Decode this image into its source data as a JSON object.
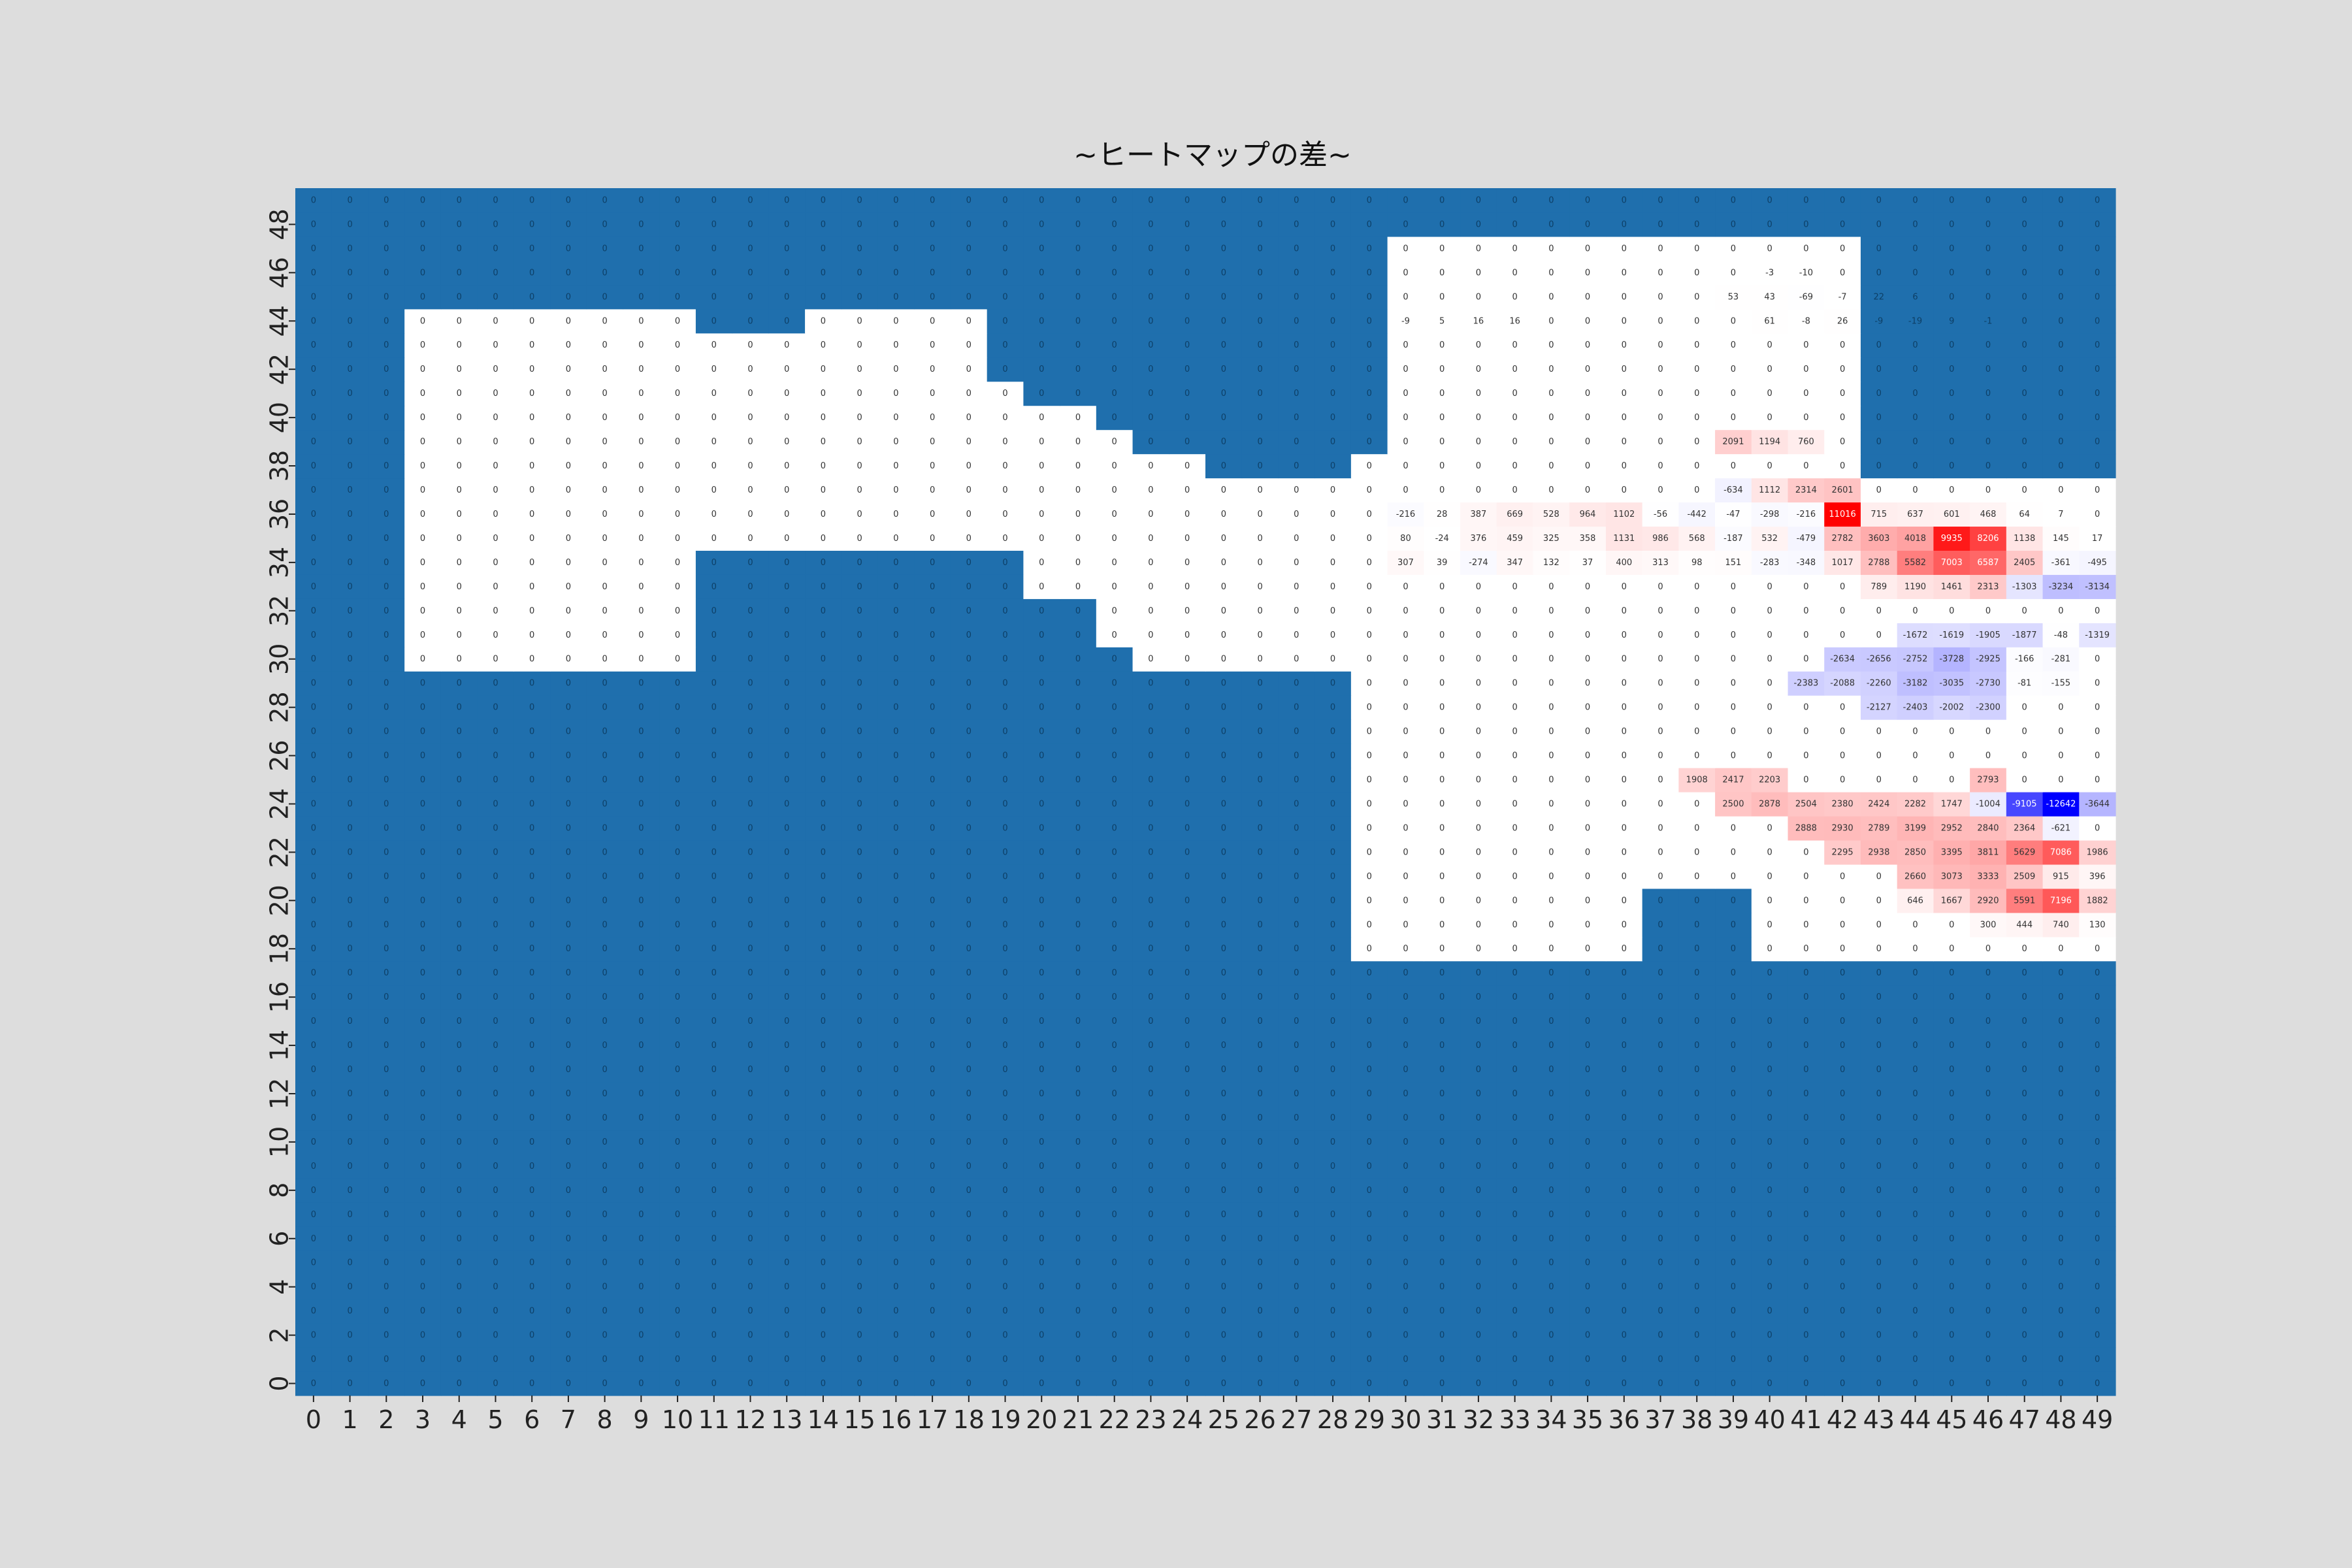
{
  "chart_data": {
    "type": "heatmap",
    "title": "~ヒートマップの差~",
    "xlabel": "",
    "ylabel": "",
    "x_tick_labels": [
      "0",
      "1",
      "2",
      "3",
      "4",
      "5",
      "6",
      "7",
      "8",
      "9",
      "10",
      "11",
      "12",
      "13",
      "14",
      "15",
      "16",
      "17",
      "18",
      "19",
      "20",
      "21",
      "22",
      "23",
      "24",
      "25",
      "26",
      "27",
      "28",
      "29",
      "30",
      "31",
      "32",
      "33",
      "34",
      "35",
      "36",
      "37",
      "38",
      "39",
      "40",
      "41",
      "42",
      "43",
      "44",
      "45",
      "46",
      "47",
      "48",
      "49"
    ],
    "y_tick_labels": [
      "0",
      "2",
      "4",
      "6",
      "8",
      "10",
      "12",
      "14",
      "16",
      "18",
      "20",
      "22",
      "24",
      "26",
      "28",
      "30",
      "32",
      "34",
      "36",
      "38",
      "40",
      "42",
      "44",
      "46",
      "48"
    ],
    "y_order": "bottom-to-top",
    "colorscale": {
      "negative": "#0000ff",
      "zero": "#ffffff",
      "positive": "#ff0000",
      "masked": "#1f6fad",
      "vmin": -12642,
      "vmax": 11016
    },
    "note_rows": "rows listed from y=49 (top) down to y=0 (bottom)",
    "annotated_values": [
      {
        "y": 36,
        "x": 42,
        "value": 11016
      },
      {
        "y": 24,
        "x": 47,
        "value": -9105
      },
      {
        "y": 24,
        "x": 48,
        "value": -12642
      },
      {
        "y": 35,
        "x": 45,
        "value": 9935
      },
      {
        "y": 35,
        "x": 46,
        "value": 8206
      },
      {
        "y": 34,
        "x": 45,
        "value": 7003
      },
      {
        "y": 34,
        "x": 46,
        "value": 6587
      },
      {
        "y": 22,
        "x": 48,
        "value": 7086
      },
      {
        "y": 20,
        "x": 48,
        "value": 7196
      },
      {
        "y": 20,
        "x": 47,
        "value": 5591
      },
      {
        "y": 22,
        "x": 47,
        "value": 5629
      },
      {
        "y": 34,
        "x": 44,
        "value": 5582
      }
    ],
    "rows": [
      {
        "y": 49,
        "values": [
          0,
          0,
          0,
          0,
          0,
          0,
          0,
          0,
          0,
          0,
          0,
          0,
          0,
          0,
          0,
          0,
          0,
          0,
          0,
          0,
          0,
          0,
          0,
          0,
          0,
          0,
          0,
          0,
          0,
          0,
          0,
          0,
          0,
          0,
          0,
          0,
          0,
          0,
          0,
          0,
          0,
          0,
          0,
          0,
          0,
          0,
          0,
          0,
          0,
          0
        ],
        "mask": "all"
      },
      {
        "y": 48,
        "values": [
          0,
          0,
          0,
          0,
          0,
          0,
          0,
          0,
          0,
          0,
          0,
          0,
          0,
          0,
          0,
          0,
          0,
          0,
          0,
          0,
          0,
          0,
          0,
          0,
          0,
          0,
          0,
          0,
          0,
          0,
          0,
          0,
          0,
          0,
          0,
          0,
          0,
          0,
          0,
          0,
          0,
          0,
          0,
          0,
          0,
          0,
          0,
          0,
          0,
          0
        ],
        "mask": "all"
      },
      {
        "y": 47,
        "values": [
          0,
          0,
          0,
          0,
          0,
          0,
          0,
          0,
          0,
          0,
          0,
          0,
          0,
          0,
          0,
          0,
          0,
          0,
          0,
          0,
          0,
          0,
          0,
          0,
          0,
          0,
          0,
          0,
          0,
          0,
          0,
          0,
          0,
          0,
          0,
          0,
          0,
          0,
          0,
          0,
          0,
          0,
          0,
          0,
          0,
          0,
          0,
          0,
          0,
          0
        ],
        "mask": "all"
      },
      {
        "y": 46,
        "values": [
          0,
          0,
          0,
          0,
          0,
          0,
          0,
          0,
          0,
          0,
          0,
          0,
          0,
          0,
          0,
          0,
          0,
          0,
          0,
          0,
          0,
          0,
          0,
          0,
          0,
          0,
          0,
          0,
          0,
          0,
          0,
          0,
          0,
          0,
          0,
          0,
          0,
          0,
          0,
          0,
          -3,
          -10,
          0,
          0,
          0,
          0,
          0,
          0,
          0,
          0
        ],
        "mask": "x<29||x>42"
      },
      {
        "y": 45,
        "values": [
          0,
          0,
          0,
          0,
          0,
          0,
          0,
          0,
          0,
          0,
          0,
          0,
          0,
          0,
          0,
          0,
          0,
          0,
          0,
          0,
          0,
          0,
          0,
          0,
          0,
          0,
          0,
          0,
          0,
          0,
          0,
          0,
          0,
          0,
          0,
          0,
          0,
          0,
          0,
          53,
          43,
          -69,
          -7,
          22,
          6,
          0,
          0,
          0,
          0,
          0
        ],
        "mask": "x<29||x>42"
      },
      {
        "y": 44,
        "values": [
          0,
          0,
          0,
          0,
          0,
          0,
          0,
          0,
          0,
          0,
          0,
          0,
          0,
          0,
          0,
          0,
          0,
          0,
          0,
          0,
          0,
          0,
          0,
          0,
          0,
          0,
          0,
          0,
          0,
          0,
          -9,
          5,
          16,
          16,
          0,
          0,
          0,
          0,
          0,
          0,
          61,
          -8,
          26,
          -9,
          -19,
          9,
          -1,
          0,
          0,
          0
        ],
        "mask": "x<29||x>42"
      }
    ]
  }
}
